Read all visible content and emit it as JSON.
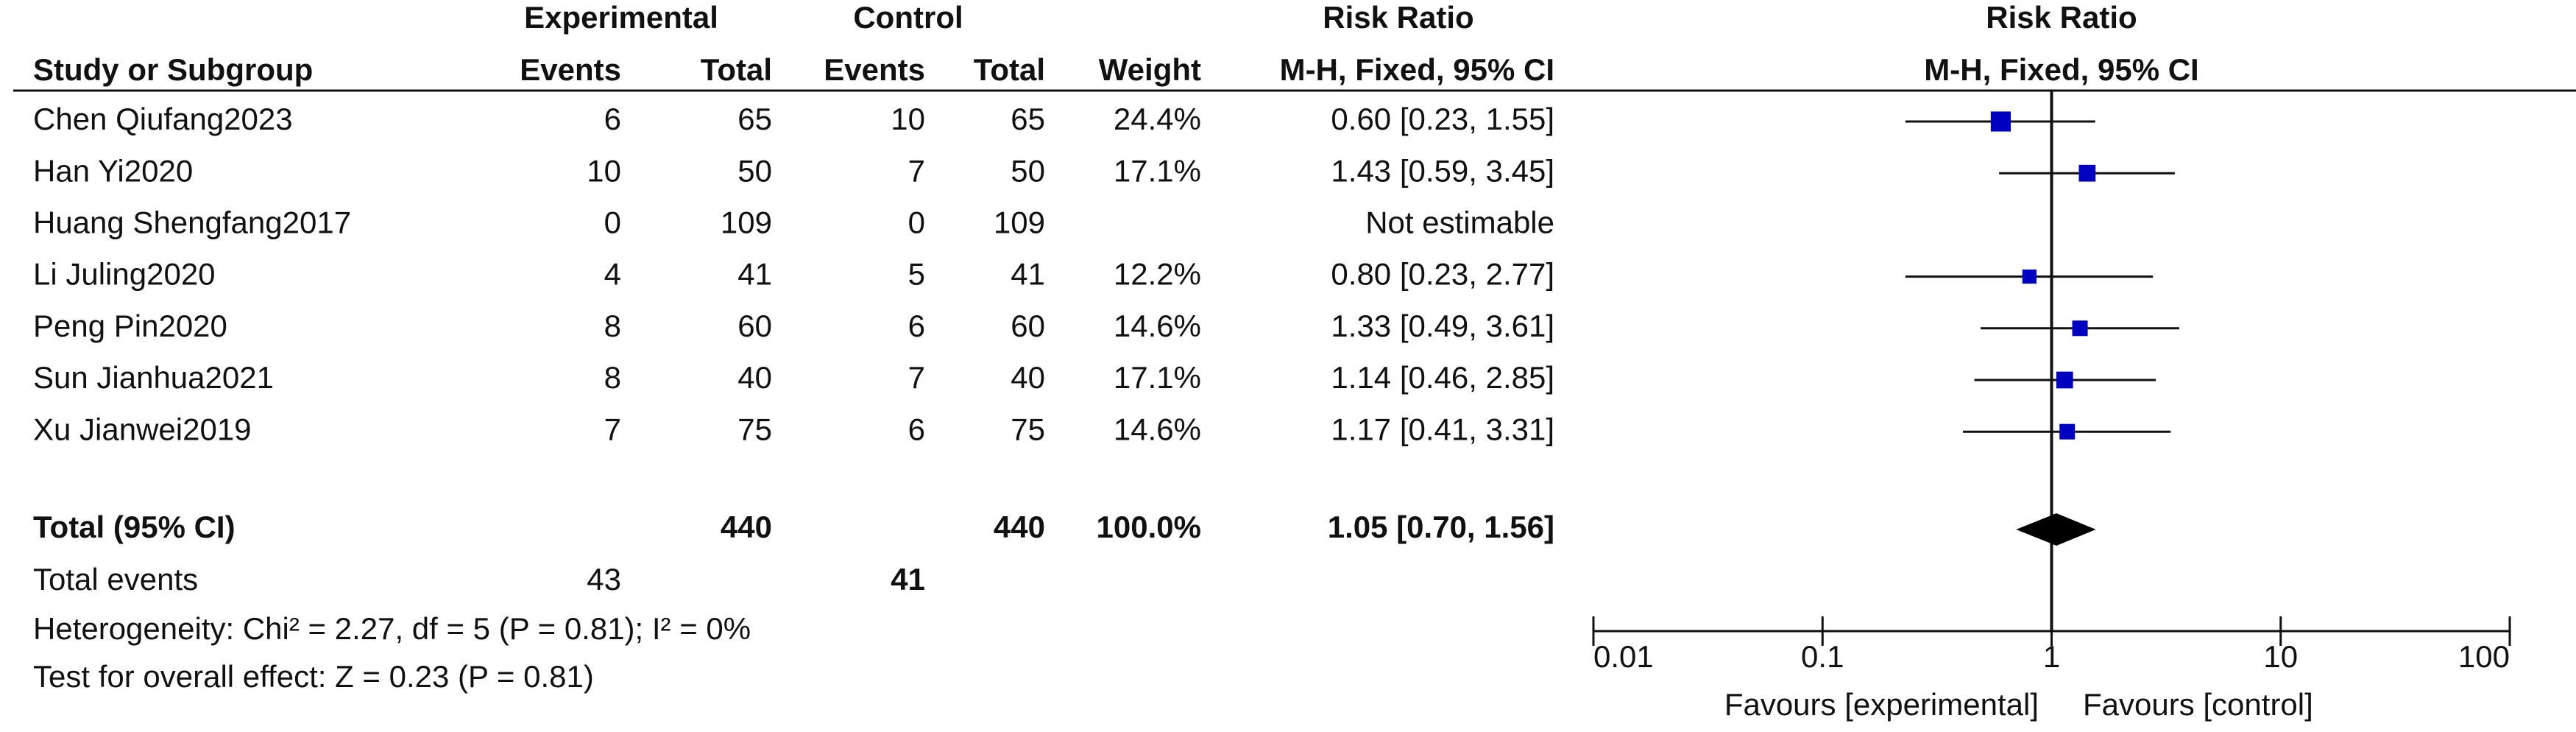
{
  "chart_data": {
    "type": "forest",
    "group_headers": {
      "experimental": "Experimental",
      "control": "Control",
      "risk_ratio": "Risk Ratio",
      "plot_title": "Risk Ratio"
    },
    "column_headers": {
      "study": "Study or Subgroup",
      "exp_events": "Events",
      "exp_total": "Total",
      "ctrl_events": "Events",
      "ctrl_total": "Total",
      "weight": "Weight",
      "ci": "M-H, Fixed, 95% CI",
      "plot_subtitle": "M-H, Fixed, 95% CI"
    },
    "studies": [
      {
        "name": "Chen Qiufang2023",
        "exp_events": 6,
        "exp_total": 65,
        "ctrl_events": 10,
        "ctrl_total": 65,
        "weight": 24.4,
        "weight_label": "24.4%",
        "rr": 0.6,
        "lower": 0.23,
        "upper": 1.55,
        "ci_label": "0.60 [0.23, 1.55]"
      },
      {
        "name": "Han Yi2020",
        "exp_events": 10,
        "exp_total": 50,
        "ctrl_events": 7,
        "ctrl_total": 50,
        "weight": 17.1,
        "weight_label": "17.1%",
        "rr": 1.43,
        "lower": 0.59,
        "upper": 3.45,
        "ci_label": "1.43 [0.59, 3.45]"
      },
      {
        "name": "Huang Shengfang2017",
        "exp_events": 0,
        "exp_total": 109,
        "ctrl_events": 0,
        "ctrl_total": 109,
        "weight": null,
        "weight_label": null,
        "rr": null,
        "lower": null,
        "upper": null,
        "ci_label": "Not estimable"
      },
      {
        "name": "Li Juling2020",
        "exp_events": 4,
        "exp_total": 41,
        "ctrl_events": 5,
        "ctrl_total": 41,
        "weight": 12.2,
        "weight_label": "12.2%",
        "rr": 0.8,
        "lower": 0.23,
        "upper": 2.77,
        "ci_label": "0.80 [0.23, 2.77]"
      },
      {
        "name": "Peng Pin2020",
        "exp_events": 8,
        "exp_total": 60,
        "ctrl_events": 6,
        "ctrl_total": 60,
        "weight": 14.6,
        "weight_label": "14.6%",
        "rr": 1.33,
        "lower": 0.49,
        "upper": 3.61,
        "ci_label": "1.33 [0.49, 3.61]"
      },
      {
        "name": "Sun Jianhua2021",
        "exp_events": 8,
        "exp_total": 40,
        "ctrl_events": 7,
        "ctrl_total": 40,
        "weight": 17.1,
        "weight_label": "17.1%",
        "rr": 1.14,
        "lower": 0.46,
        "upper": 2.85,
        "ci_label": "1.14 [0.46, 2.85]"
      },
      {
        "name": "Xu Jianwei2019",
        "exp_events": 7,
        "exp_total": 75,
        "ctrl_events": 6,
        "ctrl_total": 75,
        "weight": 14.6,
        "weight_label": "14.6%",
        "rr": 1.17,
        "lower": 0.41,
        "upper": 3.31,
        "ci_label": "1.17 [0.41, 3.31]"
      }
    ],
    "total": {
      "name": "Total (95% CI)",
      "exp_total": 440,
      "ctrl_total": 440,
      "weight": 100.0,
      "weight_label": "100.0%",
      "rr": 1.05,
      "lower": 0.7,
      "upper": 1.56,
      "ci_label": "1.05 [0.70, 1.56]"
    },
    "total_events": {
      "label": "Total events",
      "exp_events": 43,
      "ctrl_events": 41
    },
    "heterogeneity": "Heterogeneity: Chi² = 2.27, df = 5 (P = 0.81); I² = 0%",
    "overall_effect": "Test for overall effect: Z = 0.23 (P = 0.81)",
    "log_scale": true,
    "xlim": [
      0.01,
      100
    ],
    "xticks": [
      0.01,
      0.1,
      1,
      10,
      100
    ],
    "null_value": 1,
    "favours_left": "Favours [experimental]",
    "favours_right": "Favours [control]",
    "marker_color": "#0000c0"
  }
}
